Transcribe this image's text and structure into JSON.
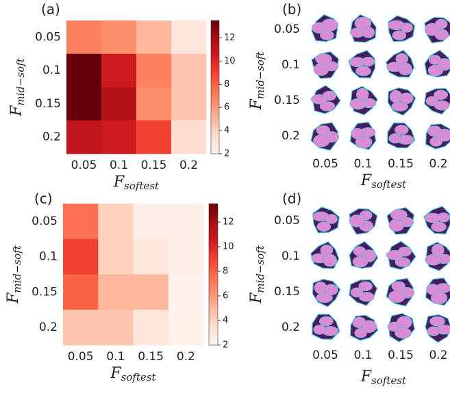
{
  "chart_data": [
    {
      "type": "heatmap",
      "title": "(a)",
      "xlabel": "F",
      "xlabel_sub": "softest",
      "ylabel": "F",
      "ylabel_sub": "mid−soft",
      "x_categories": [
        "0.05",
        "0.1",
        "0.15",
        "0.2"
      ],
      "y_categories": [
        "0.05",
        "0.1",
        "0.15",
        "0.2"
      ],
      "values": [
        [
          7,
          6.5,
          5,
          3
        ],
        [
          13.5,
          10.5,
          7,
          4.5
        ],
        [
          13.5,
          11.5,
          6.5,
          4.5
        ],
        [
          11,
          10.5,
          9,
          3.5
        ]
      ],
      "colormap": "Reds",
      "clim": [
        2,
        13.5
      ],
      "colorbar_ticks": [
        2,
        4,
        6,
        8,
        10,
        12
      ]
    },
    {
      "type": "image-grid",
      "title": "(b)",
      "xlabel": "F",
      "xlabel_sub": "softest",
      "ylabel": "F",
      "ylabel_sub": "mid−soft",
      "x_categories": [
        "0.05",
        "0.1",
        "0.15",
        "0.2"
      ],
      "y_categories": [
        "0.05",
        "0.1",
        "0.15",
        "0.2"
      ]
    },
    {
      "type": "heatmap",
      "title": "(c)",
      "xlabel": "F",
      "xlabel_sub": "softest",
      "ylabel": "F",
      "ylabel_sub": "mid−soft",
      "x_categories": [
        "0.05",
        "0.1",
        "0.15",
        "0.2"
      ],
      "y_categories": [
        "0.05",
        "0.1",
        "0.15",
        "0.2"
      ],
      "values": [
        [
          7.5,
          4,
          2.5,
          2.5
        ],
        [
          9,
          4,
          3,
          2.5
        ],
        [
          8,
          5,
          5,
          2.2
        ],
        [
          4.5,
          4.5,
          3,
          2.3
        ]
      ],
      "colormap": "Reds",
      "clim": [
        2,
        13.5
      ],
      "colorbar_ticks": [
        2,
        4,
        6,
        8,
        10,
        12
      ]
    },
    {
      "type": "image-grid",
      "title": "(d)",
      "xlabel": "F",
      "xlabel_sub": "softest",
      "ylabel": "F",
      "ylabel_sub": "mid−soft",
      "x_categories": [
        "0.05",
        "0.1",
        "0.15",
        "0.2"
      ],
      "y_categories": [
        "0.05",
        "0.1",
        "0.15",
        "0.2"
      ]
    }
  ]
}
